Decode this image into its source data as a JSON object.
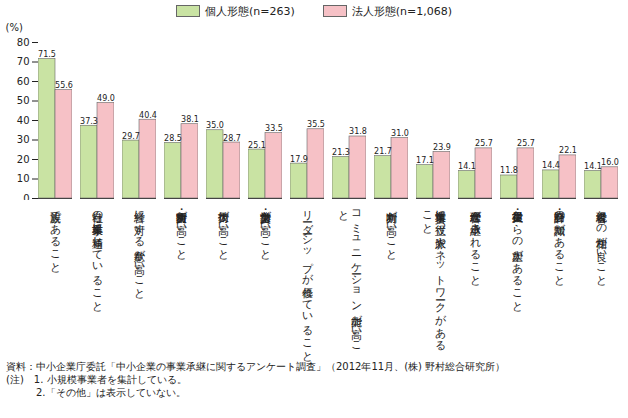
{
  "chart_data": {
    "type": "bar",
    "y_label": "(%)",
    "categories": [
      "親族であること",
      "自社の事業・業界に精通していること",
      "経営に対する意欲が高いこと",
      "決断力・実行力が高いこと",
      "技術力が高いこと",
      "営業力・交渉力が高いこと",
      "リーダーシップが優れていること",
      "コミュニケーション能力が高いこと",
      "判断力が高いこと",
      "事業運営に役立つ人脈やネットワークがあること",
      "経営理念が承継されること",
      "役員・従業員からの人望があること",
      "財務・会計の知識があること",
      "現経営者との相性が良いこと"
    ],
    "series": [
      {
        "name": "個人形態(n=263)",
        "color": "#c9e3a3",
        "values": [
          71.5,
          37.3,
          29.7,
          28.5,
          35.0,
          25.1,
          17.9,
          21.3,
          21.7,
          17.1,
          14.1,
          11.8,
          14.4,
          14.1
        ],
        "value_labels": [
          "71.5",
          "37.3",
          "29.7",
          "28.5",
          "35.0",
          "25.1",
          "17.9",
          "21.3",
          "21.7",
          "17.1",
          "14.1",
          "11.8",
          "14.4",
          "14.1"
        ]
      },
      {
        "name": "法人形態(n=1,068)",
        "color": "#f6c1c6",
        "values": [
          55.6,
          49.0,
          40.4,
          38.1,
          28.7,
          33.5,
          35.5,
          31.8,
          31.0,
          23.9,
          25.7,
          25.7,
          22.1,
          16.0
        ],
        "value_labels": [
          "55.6",
          "49.0",
          "40.4",
          "38.1",
          "28.7",
          "33.5",
          "35.5",
          "31.8",
          "31.0",
          "23.9",
          "25.7",
          "25.7",
          "22.1",
          "16.0"
        ]
      }
    ],
    "ylim": [
      0,
      80
    ],
    "yticks": [
      0,
      10,
      20,
      30,
      40,
      50,
      60,
      70,
      80
    ],
    "grid": false,
    "data_labels": true,
    "legend": "top",
    "notes": [
      "資料：中小企業庁委託「中小企業の事業承継に関するアンケート調査」（2012年11月、(株) 野村総合研究所）",
      "(注)　1. 小規模事業者を集計している。",
      "　　　2.「その他」は表示していない。"
    ]
  }
}
